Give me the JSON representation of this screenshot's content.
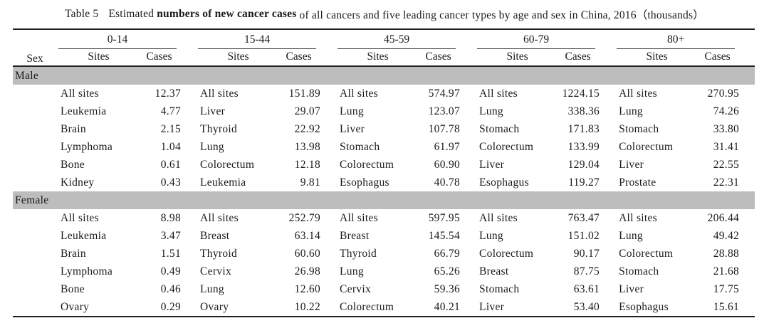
{
  "page": {
    "background_color": "#ffffff",
    "text_color": "#1a1a1a",
    "band_color": "#bdbdbd"
  },
  "title": {
    "label": "Table 5",
    "pre": "Estimated ",
    "bold": "numbers of new cancer cases",
    "post": " of all cancers and five leading cancer types by age and sex in China, 2016（thousands）"
  },
  "header": {
    "sex": "Sex",
    "sites": "Sites",
    "cases": "Cases",
    "age_groups": [
      "0-14",
      "15-44",
      "45-59",
      "60-79",
      "80+"
    ]
  },
  "sections": [
    {
      "sex": "Male",
      "rows": [
        [
          [
            "All sites",
            "12.37"
          ],
          [
            "All sites",
            "151.89"
          ],
          [
            "All sites",
            "574.97"
          ],
          [
            "All sites",
            "1224.15"
          ],
          [
            "All sites",
            "270.95"
          ]
        ],
        [
          [
            "Leukemia",
            "4.77"
          ],
          [
            "Liver",
            "29.07"
          ],
          [
            "Lung",
            "123.07"
          ],
          [
            "Lung",
            "338.36"
          ],
          [
            "Lung",
            "74.26"
          ]
        ],
        [
          [
            "Brain",
            "2.15"
          ],
          [
            "Thyroid",
            "22.92"
          ],
          [
            "Liver",
            "107.78"
          ],
          [
            "Stomach",
            "171.83"
          ],
          [
            "Stomach",
            "33.80"
          ]
        ],
        [
          [
            "Lymphoma",
            "1.04"
          ],
          [
            "Lung",
            "13.98"
          ],
          [
            "Stomach",
            "61.97"
          ],
          [
            "Colorectum",
            "133.99"
          ],
          [
            "Colorectum",
            "31.41"
          ]
        ],
        [
          [
            "Bone",
            "0.61"
          ],
          [
            "Colorectum",
            "12.18"
          ],
          [
            "Colorectum",
            "60.90"
          ],
          [
            "Liver",
            "129.04"
          ],
          [
            "Liver",
            "22.55"
          ]
        ],
        [
          [
            "Kidney",
            "0.43"
          ],
          [
            "Leukemia",
            "9.81"
          ],
          [
            "Esophagus",
            "40.78"
          ],
          [
            "Esophagus",
            "119.27"
          ],
          [
            "Prostate",
            "22.31"
          ]
        ]
      ]
    },
    {
      "sex": "Female",
      "rows": [
        [
          [
            "All sites",
            "8.98"
          ],
          [
            "All sites",
            "252.79"
          ],
          [
            "All sites",
            "597.95"
          ],
          [
            "All sites",
            "763.47"
          ],
          [
            "All sites",
            "206.44"
          ]
        ],
        [
          [
            "Leukemia",
            "3.47"
          ],
          [
            "Breast",
            "63.14"
          ],
          [
            "Breast",
            "145.54"
          ],
          [
            "Lung",
            "151.02"
          ],
          [
            "Lung",
            "49.42"
          ]
        ],
        [
          [
            "Brain",
            "1.51"
          ],
          [
            "Thyroid",
            "60.60"
          ],
          [
            "Thyroid",
            "66.79"
          ],
          [
            "Colorectum",
            "90.17"
          ],
          [
            "Colorectum",
            "28.88"
          ]
        ],
        [
          [
            "Lymphoma",
            "0.49"
          ],
          [
            "Cervix",
            "26.98"
          ],
          [
            "Lung",
            "65.26"
          ],
          [
            "Breast",
            "87.75"
          ],
          [
            "Stomach",
            "21.68"
          ]
        ],
        [
          [
            "Bone",
            "0.46"
          ],
          [
            "Lung",
            "12.60"
          ],
          [
            "Cervix",
            "59.36"
          ],
          [
            "Stomach",
            "63.61"
          ],
          [
            "Liver",
            "17.75"
          ]
        ],
        [
          [
            "Ovary",
            "0.29"
          ],
          [
            "Ovary",
            "10.22"
          ],
          [
            "Colorectum",
            "40.21"
          ],
          [
            "Liver",
            "53.40"
          ],
          [
            "Esophagus",
            "15.61"
          ]
        ]
      ]
    }
  ]
}
